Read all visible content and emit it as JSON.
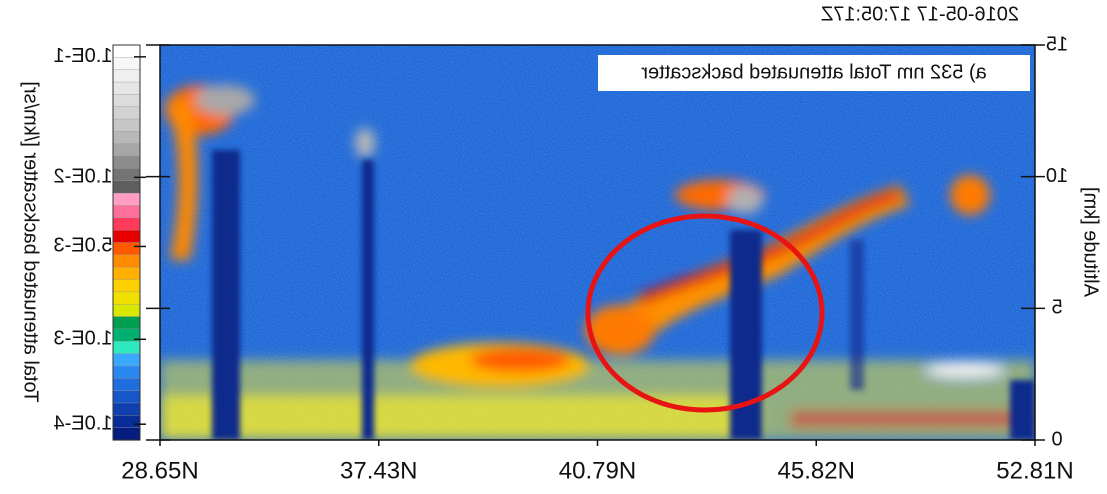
{
  "chart_data": {
    "type": "curtain",
    "title": "a) 532 nm Total attenuated backscatter",
    "subtitle": "2016-05-17 17:05:17Z",
    "y_label": "Altitude [km]",
    "colorbar_label": "Total attenuated backscatter [/km/sr]",
    "categories": [
      "28.65N",
      "37.43N",
      "40.79N",
      "45.82N",
      "52.81N"
    ],
    "ylim": [
      0,
      15
    ],
    "yticks": [
      0,
      5,
      10,
      15
    ],
    "colorbar_ticks": [
      {
        "value": 0.1,
        "label": "1.0E-1"
      },
      {
        "value": 0.01,
        "label": "1.0E-2"
      },
      {
        "value": 0.005,
        "label": "5.0E-3"
      },
      {
        "value": 0.001,
        "label": "1.0E-3"
      },
      {
        "value": 0.0001,
        "label": "1.0E-4"
      }
    ],
    "colorbar_colors": [
      "#ffffff",
      "#f7f7f7",
      "#efefef",
      "#e6e6e6",
      "#dcdcdc",
      "#d2d2d2",
      "#c6c6c6",
      "#b8b8b8",
      "#a6a6a6",
      "#8c8c8c",
      "#747474",
      "#5e5e5e",
      "#ff9ec2",
      "#ff6f9c",
      "#ff3a5a",
      "#e60000",
      "#ff5a00",
      "#ff8c00",
      "#ffb000",
      "#ffd000",
      "#f0e000",
      "#d8e800",
      "#009e50",
      "#00b070",
      "#2ee8c0",
      "#3aa8ff",
      "#2a88f0",
      "#1f6ee0",
      "#1656c8",
      "#1040b0",
      "#0a2c98",
      "#071c80"
    ],
    "mirrored": true
  }
}
